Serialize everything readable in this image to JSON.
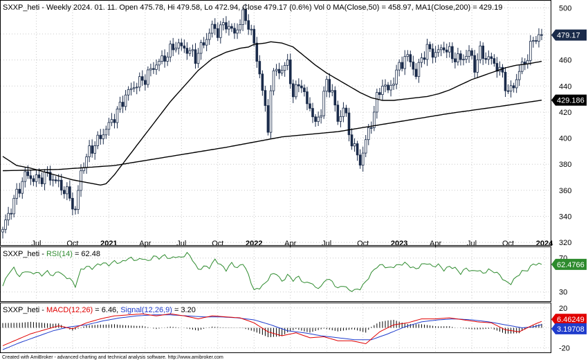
{
  "header": {
    "symbol": "SXXP_heti",
    "rest": " - Weekly 2024. 01. 11. Open 475.78, Hi 479.58, Lo 472.94, Close 479.17 (0.6%) Vol 0 ",
    "ma50_label": "MA(Close,50) = 458.97,",
    "ma200_label": "MA1(Close,200) = 429.19"
  },
  "rsi_header": {
    "symbol": "SXXP_heti",
    "sep": " - ",
    "label": "RSI(14)",
    "value_text": " = 62.48"
  },
  "macd_header": {
    "symbol": "SXXP_heti",
    "sep": " - ",
    "label": "MACD(12,26)",
    "value_text": " = 6.46, ",
    "signal_label": "Signal(12,26,9)",
    "signal_value_text": " = 3.20"
  },
  "footer": "Created with AmiBroker - advanced charting and technical analysis software. http://www.amibroker.com",
  "colors": {
    "up": "#ffffff",
    "down": "#1a2b4a",
    "ma": "#000000",
    "rsi": "#2e8b2e",
    "macd": "#e00000",
    "signal": "#1f3ccc",
    "tag_price": "#1a2b4a",
    "tag_ma": "#000000",
    "tag_rsi": "#2e8b2e",
    "tag_macd": "#e00000",
    "tag_signal": "#1f3ccc"
  },
  "chart_data": {
    "type": "candlestick",
    "price_axis": {
      "ticks": [
        "500",
        "480",
        "460",
        "440",
        "420",
        "400",
        "380",
        "360",
        "340",
        "320"
      ],
      "range": [
        319,
        505
      ]
    },
    "rsi_axis": {
      "ticks": [
        "70",
        "30"
      ],
      "range": [
        20,
        82
      ]
    },
    "macd_axis": {
      "ticks": [
        "20",
        "0",
        "-20"
      ],
      "range": [
        -24,
        24
      ]
    },
    "x_labels": [
      {
        "text": "Jul",
        "t": 12,
        "bold": false
      },
      {
        "text": "Oct",
        "t": 25,
        "bold": false
      },
      {
        "text": "2021",
        "t": 38,
        "bold": true
      },
      {
        "text": "Apr",
        "t": 51,
        "bold": false
      },
      {
        "text": "Jul",
        "t": 64,
        "bold": false
      },
      {
        "text": "Oct",
        "t": 77,
        "bold": false
      },
      {
        "text": "2022",
        "t": 90,
        "bold": true
      },
      {
        "text": "Apr",
        "t": 103,
        "bold": false
      },
      {
        "text": "Jul",
        "t": 116,
        "bold": false
      },
      {
        "text": "Oct",
        "t": 129,
        "bold": false
      },
      {
        "text": "2023",
        "t": 142,
        "bold": true
      },
      {
        "text": "Apr",
        "t": 155,
        "bold": false
      },
      {
        "text": "Jul",
        "t": 168,
        "bold": false
      },
      {
        "text": "Oct",
        "t": 181,
        "bold": false
      },
      {
        "text": "2024",
        "t": 194,
        "bold": true
      }
    ],
    "close_anchors": [
      [
        0,
        330
      ],
      [
        4,
        352
      ],
      [
        8,
        372
      ],
      [
        12,
        368
      ],
      [
        16,
        372
      ],
      [
        20,
        365
      ],
      [
        24,
        355
      ],
      [
        26,
        343
      ],
      [
        28,
        375
      ],
      [
        31,
        390
      ],
      [
        34,
        398
      ],
      [
        38,
        410
      ],
      [
        41,
        420
      ],
      [
        44,
        433
      ],
      [
        47,
        440
      ],
      [
        51,
        446
      ],
      [
        54,
        455
      ],
      [
        58,
        462
      ],
      [
        62,
        472
      ],
      [
        66,
        468
      ],
      [
        69,
        462
      ],
      [
        72,
        473
      ],
      [
        75,
        485
      ],
      [
        77,
        482
      ],
      [
        80,
        488
      ],
      [
        83,
        480
      ],
      [
        86,
        494
      ],
      [
        88,
        488
      ],
      [
        90,
        472
      ],
      [
        92,
        450
      ],
      [
        94,
        422
      ],
      [
        95,
        408
      ],
      [
        96,
        438
      ],
      [
        98,
        455
      ],
      [
        100,
        450
      ],
      [
        102,
        460
      ],
      [
        104,
        430
      ],
      [
        106,
        445
      ],
      [
        108,
        432
      ],
      [
        110,
        424
      ],
      [
        112,
        410
      ],
      [
        114,
        422
      ],
      [
        116,
        443
      ],
      [
        118,
        436
      ],
      [
        120,
        412
      ],
      [
        122,
        425
      ],
      [
        124,
        404
      ],
      [
        126,
        392
      ],
      [
        128,
        381
      ],
      [
        130,
        398
      ],
      [
        132,
        412
      ],
      [
        134,
        430
      ],
      [
        136,
        442
      ],
      [
        138,
        436
      ],
      [
        140,
        445
      ],
      [
        142,
        455
      ],
      [
        144,
        462
      ],
      [
        146,
        460
      ],
      [
        148,
        448
      ],
      [
        150,
        462
      ],
      [
        152,
        468
      ],
      [
        155,
        465
      ],
      [
        158,
        470
      ],
      [
        161,
        463
      ],
      [
        164,
        460
      ],
      [
        167,
        466
      ],
      [
        169,
        455
      ],
      [
        171,
        466
      ],
      [
        173,
        462
      ],
      [
        175,
        460
      ],
      [
        177,
        455
      ],
      [
        179,
        448
      ],
      [
        181,
        435
      ],
      [
        183,
        440
      ],
      [
        185,
        452
      ],
      [
        187,
        458
      ],
      [
        189,
        470
      ],
      [
        191,
        478
      ],
      [
        193,
        479.17
      ]
    ],
    "high_low_spread": 5,
    "ma50_anchors": [
      [
        0,
        386
      ],
      [
        5,
        379
      ],
      [
        10,
        377
      ],
      [
        15,
        374
      ],
      [
        20,
        371
      ],
      [
        25,
        368
      ],
      [
        30,
        366
      ],
      [
        35,
        364
      ],
      [
        37,
        365
      ],
      [
        40,
        372
      ],
      [
        45,
        386
      ],
      [
        50,
        400
      ],
      [
        55,
        414
      ],
      [
        60,
        428
      ],
      [
        65,
        440
      ],
      [
        70,
        452
      ],
      [
        75,
        461
      ],
      [
        80,
        466
      ],
      [
        85,
        469
      ],
      [
        88,
        470
      ],
      [
        90,
        472
      ],
      [
        94,
        473
      ],
      [
        96,
        474
      ],
      [
        100,
        473
      ],
      [
        104,
        470
      ],
      [
        108,
        463
      ],
      [
        112,
        456
      ],
      [
        116,
        450
      ],
      [
        120,
        445
      ],
      [
        124,
        440
      ],
      [
        128,
        435
      ],
      [
        132,
        431
      ],
      [
        136,
        429
      ],
      [
        140,
        429
      ],
      [
        144,
        430
      ],
      [
        148,
        431
      ],
      [
        152,
        432
      ],
      [
        156,
        434
      ],
      [
        160,
        437
      ],
      [
        164,
        441
      ],
      [
        168,
        445
      ],
      [
        172,
        448
      ],
      [
        176,
        451
      ],
      [
        180,
        454
      ],
      [
        184,
        456
      ],
      [
        188,
        457
      ],
      [
        193,
        458.97
      ]
    ],
    "ma200_anchors": [
      [
        0,
        375
      ],
      [
        20,
        376
      ],
      [
        40,
        379
      ],
      [
        60,
        386
      ],
      [
        80,
        393
      ],
      [
        100,
        401
      ],
      [
        120,
        405
      ],
      [
        140,
        412
      ],
      [
        160,
        419
      ],
      [
        180,
        425
      ],
      [
        193,
        429.19
      ]
    ],
    "rsi_anchors": [
      [
        0,
        37
      ],
      [
        2,
        52
      ],
      [
        4,
        58
      ],
      [
        6,
        48
      ],
      [
        8,
        55
      ],
      [
        10,
        52
      ],
      [
        12,
        53
      ],
      [
        14,
        50
      ],
      [
        16,
        54
      ],
      [
        18,
        49
      ],
      [
        20,
        55
      ],
      [
        22,
        48
      ],
      [
        24,
        46
      ],
      [
        26,
        37
      ],
      [
        28,
        56
      ],
      [
        30,
        60
      ],
      [
        32,
        58
      ],
      [
        34,
        62
      ],
      [
        36,
        64
      ],
      [
        38,
        62
      ],
      [
        40,
        66
      ],
      [
        42,
        64
      ],
      [
        44,
        68
      ],
      [
        46,
        70
      ],
      [
        48,
        67
      ],
      [
        50,
        70
      ],
      [
        52,
        66
      ],
      [
        54,
        72
      ],
      [
        56,
        70
      ],
      [
        58,
        73
      ],
      [
        60,
        69
      ],
      [
        62,
        72
      ],
      [
        64,
        70
      ],
      [
        66,
        76
      ],
      [
        68,
        68
      ],
      [
        70,
        56
      ],
      [
        72,
        60
      ],
      [
        74,
        59
      ],
      [
        76,
        68
      ],
      [
        78,
        62
      ],
      [
        80,
        56
      ],
      [
        82,
        64
      ],
      [
        84,
        58
      ],
      [
        86,
        64
      ],
      [
        88,
        50
      ],
      [
        90,
        32
      ],
      [
        92,
        35
      ],
      [
        94,
        40
      ],
      [
        96,
        50
      ],
      [
        98,
        52
      ],
      [
        100,
        42
      ],
      [
        102,
        50
      ],
      [
        104,
        44
      ],
      [
        106,
        48
      ],
      [
        108,
        40
      ],
      [
        110,
        42
      ],
      [
        112,
        35
      ],
      [
        114,
        36
      ],
      [
        116,
        46
      ],
      [
        118,
        42
      ],
      [
        120,
        34
      ],
      [
        122,
        38
      ],
      [
        124,
        32
      ],
      [
        126,
        32
      ],
      [
        128,
        34
      ],
      [
        130,
        42
      ],
      [
        132,
        52
      ],
      [
        134,
        60
      ],
      [
        136,
        62
      ],
      [
        138,
        58
      ],
      [
        140,
        60
      ],
      [
        142,
        62
      ],
      [
        144,
        64
      ],
      [
        146,
        60
      ],
      [
        148,
        57
      ],
      [
        150,
        62
      ],
      [
        152,
        64
      ],
      [
        154,
        60
      ],
      [
        156,
        62
      ],
      [
        158,
        56
      ],
      [
        160,
        60
      ],
      [
        162,
        58
      ],
      [
        164,
        52
      ],
      [
        166,
        58
      ],
      [
        168,
        54
      ],
      [
        170,
        56
      ],
      [
        172,
        52
      ],
      [
        174,
        56
      ],
      [
        176,
        54
      ],
      [
        178,
        50
      ],
      [
        180,
        42
      ],
      [
        182,
        40
      ],
      [
        184,
        48
      ],
      [
        186,
        54
      ],
      [
        188,
        56
      ],
      [
        190,
        63
      ],
      [
        193,
        62.48
      ]
    ],
    "macd_anchors": [
      [
        0,
        -18
      ],
      [
        5,
        -12
      ],
      [
        10,
        -6
      ],
      [
        15,
        -2
      ],
      [
        20,
        2
      ],
      [
        25,
        -1
      ],
      [
        30,
        5
      ],
      [
        35,
        9
      ],
      [
        40,
        12
      ],
      [
        45,
        13
      ],
      [
        50,
        14
      ],
      [
        55,
        12
      ],
      [
        60,
        14
      ],
      [
        65,
        12
      ],
      [
        70,
        9
      ],
      [
        75,
        12
      ],
      [
        80,
        11
      ],
      [
        85,
        10
      ],
      [
        90,
        5
      ],
      [
        95,
        -4
      ],
      [
        100,
        -8
      ],
      [
        105,
        -5
      ],
      [
        110,
        -10
      ],
      [
        115,
        -9
      ],
      [
        120,
        -13
      ],
      [
        125,
        -13
      ],
      [
        130,
        -16
      ],
      [
        135,
        -4
      ],
      [
        140,
        3
      ],
      [
        145,
        5
      ],
      [
        150,
        9
      ],
      [
        155,
        9
      ],
      [
        160,
        10
      ],
      [
        165,
        8
      ],
      [
        170,
        6
      ],
      [
        175,
        5
      ],
      [
        180,
        -2
      ],
      [
        185,
        -4
      ],
      [
        190,
        3
      ],
      [
        193,
        6.46
      ]
    ],
    "signal_anchors": [
      [
        0,
        -22
      ],
      [
        6,
        -15
      ],
      [
        12,
        -9
      ],
      [
        18,
        -3
      ],
      [
        24,
        1
      ],
      [
        30,
        3
      ],
      [
        36,
        7
      ],
      [
        42,
        10
      ],
      [
        48,
        12
      ],
      [
        54,
        13
      ],
      [
        60,
        13
      ],
      [
        66,
        12
      ],
      [
        72,
        11
      ],
      [
        78,
        11
      ],
      [
        84,
        10
      ],
      [
        90,
        8
      ],
      [
        96,
        3
      ],
      [
        102,
        -3
      ],
      [
        108,
        -5
      ],
      [
        114,
        -8
      ],
      [
        120,
        -10
      ],
      [
        126,
        -12
      ],
      [
        132,
        -12
      ],
      [
        138,
        -6
      ],
      [
        144,
        1
      ],
      [
        150,
        6
      ],
      [
        156,
        8
      ],
      [
        162,
        9
      ],
      [
        168,
        8
      ],
      [
        174,
        6
      ],
      [
        180,
        3
      ],
      [
        186,
        0
      ],
      [
        190,
        1
      ],
      [
        193,
        3.2
      ]
    ],
    "last": {
      "close": "479.17",
      "ma200": "429.186",
      "rsi": "62.4766",
      "macd": "6.46249",
      "signal": "3.19708"
    }
  }
}
